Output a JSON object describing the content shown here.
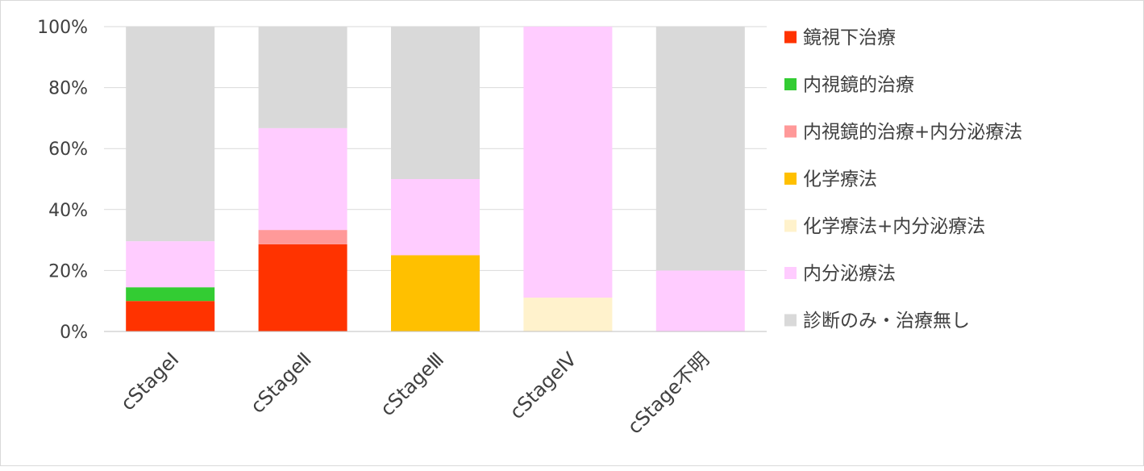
{
  "chart_data": {
    "type": "bar",
    "stacked": "percent",
    "categories": [
      "cStageⅠ",
      "cStageⅡ",
      "cStageⅢ",
      "cStageⅣ",
      "cStage不明"
    ],
    "series": [
      {
        "name": "鏡視下治療",
        "color": "#ff3300",
        "values": [
          10,
          28.6,
          0,
          0,
          0
        ]
      },
      {
        "name": "内視鏡的治療",
        "color": "#33cc33",
        "values": [
          4.5,
          0,
          0,
          0,
          0
        ]
      },
      {
        "name": "内視鏡的治療+内分泌療法",
        "color": "#ff9999",
        "values": [
          0,
          4.7,
          0,
          0,
          0
        ]
      },
      {
        "name": "化学療法",
        "color": "#ffc000",
        "values": [
          0,
          0,
          25,
          0,
          0
        ]
      },
      {
        "name": "化学療法+内分泌療法",
        "color": "#fff2cc",
        "values": [
          0,
          0,
          0,
          11.1,
          0
        ]
      },
      {
        "name": "内分泌療法",
        "color": "#ffccff",
        "values": [
          15.1,
          33.4,
          25,
          88.9,
          20
        ]
      },
      {
        "name": "診断のみ・治療無し",
        "color": "#d9d9d9",
        "values": [
          70.4,
          33.3,
          50,
          0,
          80
        ]
      }
    ],
    "yticks": [
      "0%",
      "20%",
      "40%",
      "60%",
      "80%",
      "100%"
    ],
    "ylim": [
      0,
      100
    ],
    "grid": true,
    "legend_position": "right"
  }
}
